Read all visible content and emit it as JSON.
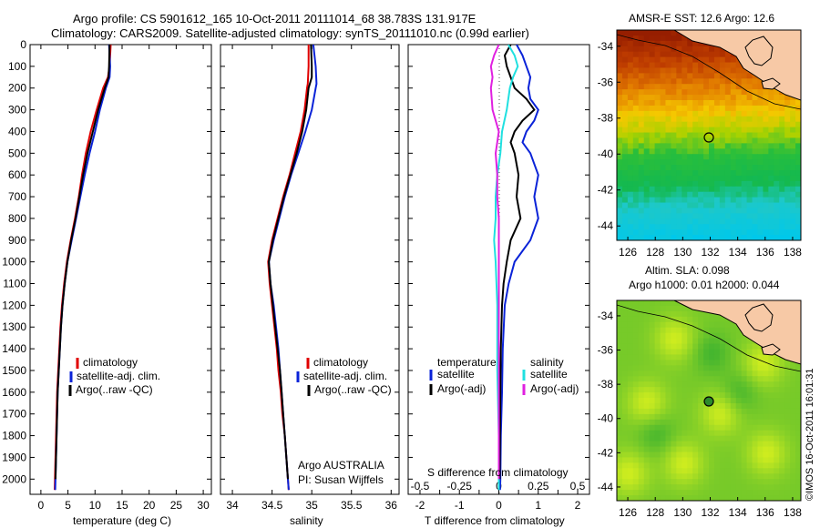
{
  "header": {
    "line1": "Argo profile: CS 5901612_165 10-Oct-2011 20111014_68 38.783S 131.917E",
    "line2": "Climatology: CARS2009. Satellite-adjusted climatology: synTS_20111010.nc (0.99d earlier)"
  },
  "colors": {
    "climatology": "#e00000",
    "satellite": "#0a23d8",
    "argo": "#000000",
    "sal_satellite": "#20e0e0",
    "sal_argo": "#e020e0",
    "land": "#f7c9a6"
  },
  "chart_data": [
    {
      "type": "line",
      "ylabel": "",
      "xlabel": "temperature (deg C)",
      "xticks": [
        "0",
        "5",
        "10",
        "15",
        "20",
        "25",
        "30"
      ],
      "xlim": [
        -2,
        31.5
      ],
      "ylim": [
        2070,
        0
      ],
      "yticks": [
        "0",
        "100",
        "200",
        "300",
        "400",
        "500",
        "600",
        "700",
        "800",
        "900",
        "1000",
        "1100",
        "1200",
        "1300",
        "1400",
        "1500",
        "1600",
        "1700",
        "1800",
        "1900",
        "2000"
      ],
      "legend": [
        "climatology",
        "satellite-adj. clim.",
        "Argo(..raw -QC)"
      ],
      "series": [
        {
          "name": "climatology",
          "depth": [
            0,
            100,
            150,
            200,
            300,
            400,
            500,
            600,
            700,
            800,
            900,
            1000,
            1100,
            1200,
            1300,
            1400,
            1500,
            1600,
            1700,
            1800,
            1900,
            2000,
            2050
          ],
          "values": [
            12.9,
            12.7,
            12.4,
            11.5,
            10.3,
            9.2,
            8.3,
            7.6,
            7.0,
            6.3,
            5.5,
            4.8,
            4.3,
            3.9,
            3.6,
            3.4,
            3.2,
            3.0,
            2.9,
            2.8,
            2.7,
            2.6,
            2.55
          ]
        },
        {
          "name": "satellite-adj. clim.",
          "depth": [
            0,
            100,
            150,
            200,
            300,
            400,
            500,
            600,
            700,
            800,
            900,
            1000,
            1100,
            1200,
            1300,
            1400,
            1500,
            1600,
            1700,
            1800,
            1900,
            2000,
            2050
          ],
          "values": [
            12.6,
            12.8,
            12.7,
            12.0,
            10.9,
            10.0,
            9.0,
            8.1,
            7.3,
            6.5,
            5.7,
            4.9,
            4.4,
            4.0,
            3.7,
            3.5,
            3.3,
            3.1,
            3.0,
            2.9,
            2.8,
            2.7,
            2.65
          ]
        },
        {
          "name": "Argo(..raw -QC)",
          "depth": [
            0,
            100,
            150,
            200,
            300,
            400,
            500,
            600,
            700,
            800,
            900,
            1000,
            1100,
            1200,
            1300,
            1400,
            1500,
            1600,
            1700,
            1800,
            1900,
            2000
          ],
          "values": [
            12.7,
            12.6,
            12.5,
            11.8,
            10.6,
            9.6,
            8.6,
            7.8,
            7.1,
            6.4,
            5.6,
            4.9,
            4.4,
            4.0,
            3.7,
            3.5,
            3.3,
            3.1,
            3.0,
            2.9,
            2.8,
            2.7
          ]
        }
      ]
    },
    {
      "type": "line",
      "xlabel": "salinity",
      "xticks": [
        "34",
        "34.5",
        "35",
        "35.5",
        "36"
      ],
      "xlim": [
        33.85,
        36.1
      ],
      "ylim": [
        2070,
        0
      ],
      "legend": [
        "climatology",
        "satellite-adj. clim.",
        "Argo(..raw -QC)"
      ],
      "annotation": [
        "Argo AUSTRALIA",
        "PI: Susan Wijffels"
      ],
      "series": [
        {
          "name": "climatology",
          "depth": [
            0,
            100,
            180,
            200,
            300,
            400,
            500,
            600,
            700,
            800,
            900,
            1000,
            1100,
            1200,
            1300,
            1400,
            1500,
            1600,
            1700,
            1800,
            1900,
            2000,
            2050
          ],
          "values": [
            34.96,
            34.96,
            34.95,
            34.94,
            34.91,
            34.86,
            34.79,
            34.72,
            34.64,
            34.57,
            34.5,
            34.45,
            34.47,
            34.5,
            34.53,
            34.56,
            34.58,
            34.61,
            34.63,
            34.66,
            34.68,
            34.7,
            34.71
          ]
        },
        {
          "name": "satellite-adj. clim.",
          "depth": [
            0,
            100,
            180,
            200,
            300,
            400,
            500,
            600,
            700,
            800,
            900,
            1000,
            1100,
            1200,
            1300,
            1400,
            1500,
            1600,
            1700,
            1800,
            1900,
            2000,
            2050
          ],
          "values": [
            35.02,
            35.05,
            35.06,
            35.05,
            35.0,
            34.92,
            34.83,
            34.74,
            34.66,
            34.59,
            34.52,
            34.46,
            34.48,
            34.52,
            34.55,
            34.58,
            34.6,
            34.62,
            34.64,
            34.66,
            34.68,
            34.7,
            34.71
          ]
        },
        {
          "name": "Argo(..raw -QC)",
          "depth": [
            0,
            100,
            150,
            200,
            300,
            400,
            500,
            600,
            700,
            800,
            900,
            1000,
            1100,
            1200,
            1300,
            1400,
            1500,
            1600,
            1700,
            1800,
            1900,
            2000
          ],
          "values": [
            34.99,
            35.0,
            35.0,
            34.96,
            34.93,
            34.88,
            34.81,
            34.73,
            34.65,
            34.58,
            34.51,
            34.46,
            34.48,
            34.51,
            34.54,
            34.57,
            34.6,
            34.62,
            34.64,
            34.66,
            34.68,
            34.7
          ]
        }
      ]
    },
    {
      "type": "line",
      "xlabel": "T difference from climatology",
      "xlabel_top": "S difference from climatology",
      "xticks": [
        "-2",
        "-1.5",
        "-1",
        "-0.5",
        "0",
        "0.5",
        "1",
        "1.5",
        "2"
      ],
      "xticks_top": [
        "-0.5",
        "-0.25",
        "0",
        "0.25",
        "0.5"
      ],
      "xlim": [
        -2.3,
        2.3
      ],
      "ylim": [
        2070,
        0
      ],
      "legend_temperature": {
        "title": "temperature",
        "items": [
          "satellite",
          "Argo(-adj)"
        ]
      },
      "legend_salinity": {
        "title": "salinity",
        "items": [
          "satellite",
          "Argo(-adj)"
        ]
      },
      "series": [
        {
          "name": "satellite",
          "kind": "temperature",
          "depth": [
            0,
            50,
            100,
            150,
            200,
            250,
            300,
            350,
            400,
            450,
            500,
            600,
            700,
            800,
            900,
            1000,
            1100,
            1200,
            1400,
            1600,
            1800,
            2000,
            2050
          ],
          "values": [
            0.45,
            0.6,
            0.7,
            0.8,
            0.75,
            0.8,
            1.0,
            0.9,
            0.7,
            0.6,
            0.8,
            1.0,
            0.9,
            1.0,
            0.8,
            0.4,
            0.25,
            0.15,
            0.1,
            0.08,
            0.05,
            0.04,
            0.03
          ]
        },
        {
          "name": "Argo(-adj)",
          "kind": "temperature",
          "depth": [
            0,
            50,
            100,
            150,
            200,
            250,
            300,
            350,
            400,
            450,
            500,
            600,
            700,
            800,
            900,
            1000,
            1100,
            1200,
            1400,
            1600,
            1800,
            2000
          ],
          "values": [
            0.3,
            0.15,
            0.2,
            0.3,
            0.4,
            0.7,
            0.9,
            0.6,
            0.4,
            0.3,
            0.4,
            0.5,
            0.45,
            0.55,
            0.3,
            0.2,
            0.12,
            0.08,
            0.05,
            0.04,
            0.03,
            0.02
          ]
        },
        {
          "name": "satellite",
          "kind": "salinity",
          "depth": [
            0,
            50,
            100,
            150,
            200,
            300,
            400,
            500,
            600,
            700,
            800,
            900,
            1000,
            1200,
            1500,
            1800,
            2000,
            2050
          ],
          "values": [
            0.06,
            0.1,
            0.12,
            0.09,
            0.07,
            0.05,
            0.02,
            0.01,
            -0.01,
            -0.02,
            -0.02,
            -0.03,
            -0.02,
            -0.01,
            -0.01,
            0,
            0,
            0
          ]
        },
        {
          "name": "Argo(-adj)",
          "kind": "salinity",
          "depth": [
            0,
            50,
            100,
            150,
            200,
            300,
            400,
            500,
            600,
            700,
            800,
            900,
            1000,
            1200,
            1500,
            1800,
            2000
          ],
          "values": [
            0.0,
            -0.03,
            -0.05,
            -0.04,
            -0.05,
            -0.04,
            0.0,
            -0.02,
            -0.01,
            -0.01,
            0.0,
            0.0,
            0.0,
            0.0,
            0.0,
            0.0,
            0.0
          ]
        }
      ]
    },
    {
      "type": "heatmap",
      "title": "AMSR-E SST: 12.6 Argo: 12.6",
      "xticks": [
        "126",
        "128",
        "130",
        "132",
        "134",
        "136",
        "138"
      ],
      "yticks": [
        "-34",
        "-36",
        "-38",
        "-40",
        "-42",
        "-44"
      ],
      "xlim": [
        125.2,
        138.6
      ],
      "ylim": [
        -44.8,
        -33.1
      ],
      "marker": {
        "lon": 131.917,
        "lat": -38.783
      }
    },
    {
      "type": "heatmap",
      "title_lines": [
        "Altim. SLA: 0.098",
        "Argo h1000: 0.01 h2000: 0.044"
      ],
      "xticks": [
        "126",
        "128",
        "130",
        "132",
        "134",
        "136",
        "138"
      ],
      "yticks": [
        "-34",
        "-36",
        "-38",
        "-40",
        "-42",
        "-44"
      ],
      "xlim": [
        125.2,
        138.6
      ],
      "ylim": [
        -44.8,
        -33.1
      ],
      "marker": {
        "lon": 131.917,
        "lat": -38.783
      }
    }
  ],
  "side_label": "©IMOS 16-Oct-2011 16:01:31"
}
